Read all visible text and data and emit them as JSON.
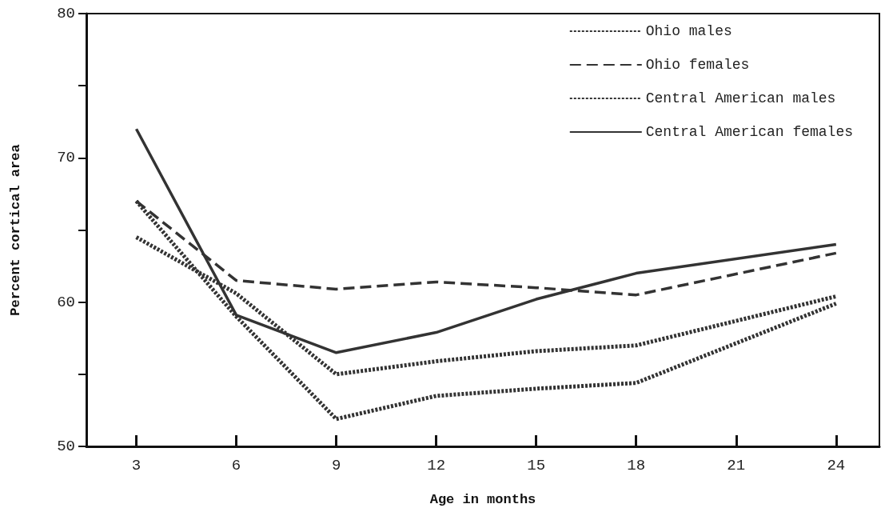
{
  "chart_data": {
    "type": "line",
    "xlabel": "Age in months",
    "ylabel": "Percent cortical area",
    "x": [
      3,
      6,
      9,
      12,
      15,
      18,
      21,
      24
    ],
    "series": [
      {
        "name": "Ohio males",
        "color": "#333333",
        "line_style": "dotted",
        "values": [
          67.0,
          59.0,
          51.9,
          53.5,
          54.0,
          54.4,
          null,
          59.9
        ]
      },
      {
        "name": "Ohio females",
        "color": "#333333",
        "line_style": "dashed",
        "values": [
          67.0,
          61.5,
          60.9,
          61.4,
          61.0,
          60.5,
          null,
          63.4
        ]
      },
      {
        "name": "Central American males",
        "color": "#333333",
        "line_style": "dotted",
        "values": [
          64.5,
          60.6,
          55.0,
          55.9,
          56.6,
          57.0,
          null,
          60.4
        ]
      },
      {
        "name": "Central American females",
        "color": "#333333",
        "line_style": "solid",
        "values": [
          72.0,
          59.1,
          56.5,
          57.9,
          60.2,
          62.0,
          null,
          64.0
        ]
      }
    ],
    "xlim": [
      1.5,
      25.3
    ],
    "xticks": [
      3,
      6,
      9,
      12,
      15,
      18,
      21,
      24
    ],
    "ylim": [
      50,
      80
    ],
    "yticks": [
      50,
      {
        "value": 55,
        "label": null
      },
      60,
      {
        "value": 65,
        "label": null
      },
      70,
      {
        "value": 75,
        "label": null
      },
      80
    ],
    "grid": false,
    "legend": "top right",
    "marker": "none"
  }
}
